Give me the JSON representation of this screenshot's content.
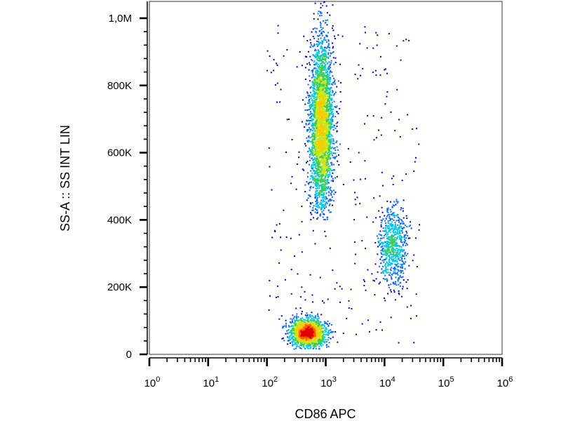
{
  "chart_data": {
    "type": "scatter",
    "subtype": "flow-cytometry density dot plot",
    "xlabel": "CD86 APC",
    "ylabel": "SS-A :: SS INT LIN",
    "x_scale": "log",
    "y_scale": "linear",
    "xlim": [
      1,
      1000000
    ],
    "ylim": [
      0,
      1050000
    ],
    "grid": false,
    "legend": "none",
    "x_ticks": [
      {
        "value": 1,
        "base": "10",
        "exp": "0"
      },
      {
        "value": 10,
        "base": "10",
        "exp": "1"
      },
      {
        "value": 100,
        "base": "10",
        "exp": "2"
      },
      {
        "value": 1000,
        "base": "10",
        "exp": "3"
      },
      {
        "value": 10000,
        "base": "10",
        "exp": "4"
      },
      {
        "value": 100000,
        "base": "10",
        "exp": "5"
      },
      {
        "value": 1000000,
        "base": "10",
        "exp": "6"
      }
    ],
    "y_ticks": [
      {
        "value": 0,
        "label": "0"
      },
      {
        "value": 200000,
        "label": "200K"
      },
      {
        "value": 400000,
        "label": "400K"
      },
      {
        "value": 600000,
        "label": "600K"
      },
      {
        "value": 800000,
        "label": "800K"
      },
      {
        "value": 1000000,
        "label": "1,0M"
      }
    ],
    "populations": [
      {
        "x_center": 850,
        "x_log_sd": 0.1,
        "y_center": 680000,
        "y_sd": 130000,
        "y_min": 400000,
        "y_max": 1050000,
        "events": 3200
      },
      {
        "x_center": 500,
        "x_log_sd": 0.15,
        "y_center": 65000,
        "y_sd": 20000,
        "y_min": 15000,
        "y_max": 140000,
        "events": 1600
      },
      {
        "x_center": 14000,
        "x_log_sd": 0.12,
        "y_center": 320000,
        "y_sd": 60000,
        "y_min": 150000,
        "y_max": 480000,
        "events": 700
      }
    ],
    "colormap": [
      "#0000c8",
      "#0a64ff",
      "#00c8e6",
      "#3ccc5a",
      "#c8e614",
      "#ffc800",
      "#ff5a00",
      "#e10000"
    ]
  }
}
